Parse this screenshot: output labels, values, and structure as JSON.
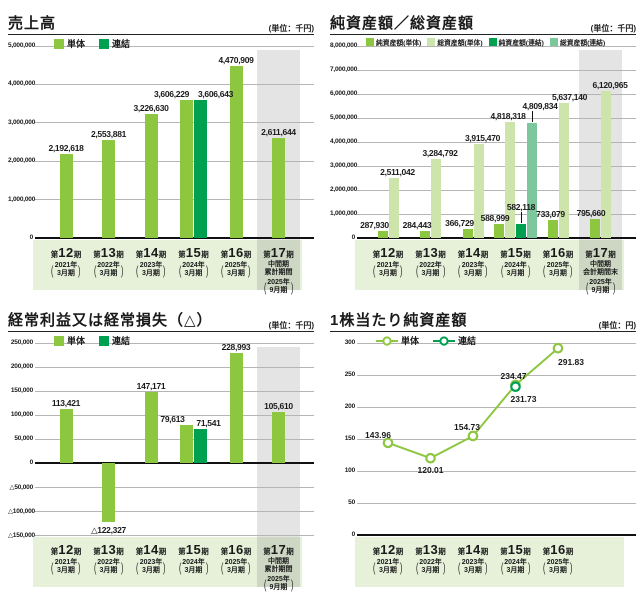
{
  "colors": {
    "unit": "#8dc63f",
    "consolidated": "#00a051",
    "total_unit": "#cde5ab",
    "total_consolidated": "#7cc79c",
    "band_bg": "#e7f1da",
    "grid": "#b5b5b5",
    "axis": "#111111",
    "text": "#1a1a1a"
  },
  "chart_data": [
    {
      "id": "sales",
      "title": "売上高",
      "unit": "(単位：千円)",
      "type": "bar",
      "ylim": [
        0,
        5000000
      ],
      "ytick": 1000000,
      "grid": true,
      "legend_position": "top",
      "gray_last": true,
      "period_prefix": "第",
      "period_suffix": "期",
      "legend": [
        {
          "label": "単体",
          "color": "unit"
        },
        {
          "label": "連結",
          "color": "consolidated"
        }
      ],
      "categories": [
        {
          "num": "12",
          "era": "2021年",
          "term": "3月期"
        },
        {
          "num": "13",
          "era": "2022年",
          "term": "3月期"
        },
        {
          "num": "14",
          "era": "2023年",
          "term": "3月期"
        },
        {
          "num": "15",
          "era": "2024年",
          "term": "3月期"
        },
        {
          "num": "16",
          "era": "2025年",
          "term": "3月期"
        },
        {
          "num": "17",
          "era": "2025年",
          "term": "9月期",
          "extra": [
            "中間期",
            "累計期間"
          ]
        }
      ],
      "points": [
        {
          "cat": 0,
          "series": "unit",
          "value": 2192618,
          "label": "2,192,618"
        },
        {
          "cat": 1,
          "series": "unit",
          "value": 2553881,
          "label": "2,553,881"
        },
        {
          "cat": 2,
          "series": "unit",
          "value": 3226630,
          "label": "3,226,630"
        },
        {
          "cat": 3,
          "series": "unit",
          "value": 3606229,
          "label": "3,606,229",
          "ldx": -15
        },
        {
          "cat": 3,
          "series": "consolidated",
          "value": 3606643,
          "label": "3,606,643",
          "ldx": 15
        },
        {
          "cat": 4,
          "series": "unit",
          "value": 4470909,
          "label": "4,470,909"
        },
        {
          "cat": 5,
          "series": "unit",
          "value": 2611644,
          "label": "2,611,644"
        }
      ]
    },
    {
      "id": "net-assets-total-assets",
      "title": "純資産額／総資産額",
      "unit": "(単位：千円)",
      "type": "bar",
      "ylim": [
        0,
        8000000
      ],
      "ytick": 1000000,
      "grid": true,
      "legend_position": "top",
      "gray_last": true,
      "period_prefix": "第",
      "period_suffix": "期",
      "legend": [
        {
          "label": "純資産額(単体)",
          "color": "unit"
        },
        {
          "label": "総資産額(単体)",
          "color": "total_unit"
        },
        {
          "label": "純資産額(連結)",
          "color": "consolidated"
        },
        {
          "label": "総資産額(連結)",
          "color": "total_consolidated"
        }
      ],
      "categories": [
        {
          "num": "12",
          "era": "2021年",
          "term": "3月期"
        },
        {
          "num": "13",
          "era": "2022年",
          "term": "3月期"
        },
        {
          "num": "14",
          "era": "2023年",
          "term": "3月期"
        },
        {
          "num": "15",
          "era": "2024年",
          "term": "3月期"
        },
        {
          "num": "16",
          "era": "2025年",
          "term": "3月期"
        },
        {
          "num": "17",
          "era": "2025年",
          "term": "9月期",
          "extra": [
            "中間期",
            "会計期間末"
          ]
        }
      ],
      "points": [
        {
          "cat": 0,
          "series": "unit",
          "value": 287930,
          "label": "287,930",
          "ldx": -8
        },
        {
          "cat": 0,
          "series": "total_unit",
          "value": 2511042,
          "label": "2,511,042",
          "ldx": 4
        },
        {
          "cat": 1,
          "series": "unit",
          "value": 284443,
          "label": "284,443",
          "ldx": -8
        },
        {
          "cat": 1,
          "series": "total_unit",
          "value": 3284792,
          "label": "3,284,792",
          "ldx": 4
        },
        {
          "cat": 2,
          "series": "unit",
          "value": 366729,
          "label": "366,729",
          "ldx": -8
        },
        {
          "cat": 2,
          "series": "total_unit",
          "value": 3915470,
          "label": "3,915,470",
          "ldx": 4
        },
        {
          "cat": 3,
          "series": "unit",
          "value": 588999,
          "label": "588,999",
          "ldx": -4
        },
        {
          "cat": 3,
          "series": "total_unit",
          "value": 4818318,
          "label": "4,818,318",
          "ldx": -2
        },
        {
          "cat": 3,
          "series": "consolidated",
          "value": 582118,
          "label": "582,118",
          "leader": true
        },
        {
          "cat": 3,
          "series": "total_consolidated",
          "value": 4809834,
          "label": "4,809,834",
          "ldx": 8,
          "leader": true
        },
        {
          "cat": 4,
          "series": "unit",
          "value": 733079,
          "label": "733,079",
          "ldx": -2
        },
        {
          "cat": 4,
          "series": "total_unit",
          "value": 5637140,
          "label": "5,637,140",
          "ldx": 6
        },
        {
          "cat": 5,
          "series": "unit",
          "value": 795660,
          "label": "795,660",
          "ldx": -4
        },
        {
          "cat": 5,
          "series": "total_unit",
          "value": 6120965,
          "label": "6,120,965",
          "ldx": 4
        }
      ]
    },
    {
      "id": "ordinary-income",
      "title": "経常利益又は経常損失（△）",
      "unit": "(単位：千円)",
      "type": "bar",
      "ylim": [
        -150000,
        250000
      ],
      "ytick": 50000,
      "grid": true,
      "legend_position": "top",
      "gray_last": true,
      "period_prefix": "第",
      "period_suffix": "期",
      "legend": [
        {
          "label": "単体",
          "color": "unit"
        },
        {
          "label": "連結",
          "color": "consolidated"
        }
      ],
      "categories": [
        {
          "num": "12",
          "era": "2021年",
          "term": "3月期"
        },
        {
          "num": "13",
          "era": "2022年",
          "term": "3月期"
        },
        {
          "num": "14",
          "era": "2023年",
          "term": "3月期"
        },
        {
          "num": "15",
          "era": "2024年",
          "term": "3月期"
        },
        {
          "num": "16",
          "era": "2025年",
          "term": "3月期"
        },
        {
          "num": "17",
          "era": "2025年",
          "term": "9月期",
          "extra": [
            "中間期",
            "累計期間"
          ]
        }
      ],
      "points": [
        {
          "cat": 0,
          "series": "unit",
          "value": 113421,
          "label": "113,421"
        },
        {
          "cat": 1,
          "series": "unit",
          "value": -122327,
          "label": "△122,327"
        },
        {
          "cat": 2,
          "series": "unit",
          "value": 147171,
          "label": "147,171"
        },
        {
          "cat": 3,
          "series": "unit",
          "value": 79613,
          "label": "79,613",
          "ldx": -14
        },
        {
          "cat": 3,
          "series": "consolidated",
          "value": 71541,
          "label": "71,541",
          "ldx": 8
        },
        {
          "cat": 4,
          "series": "unit",
          "value": 228993,
          "label": "228,993"
        },
        {
          "cat": 5,
          "series": "unit",
          "value": 105610,
          "label": "105,610"
        }
      ]
    },
    {
      "id": "net-assets-per-share",
      "title": "1株当たり純資産額",
      "unit": "(単位：円)",
      "type": "line",
      "ylim": [
        0,
        300
      ],
      "ytick": 50,
      "grid": true,
      "legend_position": "top",
      "gray_last": false,
      "period_prefix": "第",
      "period_suffix": "期",
      "legend": [
        {
          "label": "単体",
          "color": "unit"
        },
        {
          "label": "連結",
          "color": "consolidated"
        }
      ],
      "categories": [
        {
          "num": "12",
          "era": "2021年",
          "term": "3月期"
        },
        {
          "num": "13",
          "era": "2022年",
          "term": "3月期"
        },
        {
          "num": "14",
          "era": "2023年",
          "term": "3月期"
        },
        {
          "num": "15",
          "era": "2024年",
          "term": "3月期"
        },
        {
          "num": "16",
          "era": "2025年",
          "term": "3月期"
        }
      ],
      "series": [
        {
          "name": "単体",
          "color": "unit",
          "points": [
            {
              "cat": 0,
              "value": 143.96,
              "label": "143.96",
              "ldx": -10,
              "ldy": -13
            },
            {
              "cat": 1,
              "value": 120.01,
              "label": "120.01",
              "ldy": 7
            },
            {
              "cat": 2,
              "value": 154.73,
              "label": "154.73",
              "ldx": -6,
              "ldy": -14
            },
            {
              "cat": 3,
              "value": 234.47,
              "label": "234.47",
              "ldx": -2,
              "ldy": -14
            },
            {
              "cat": 4,
              "value": 291.83,
              "label": "291.83",
              "ldx": 13,
              "ldy": 9
            }
          ]
        },
        {
          "name": "連結",
          "color": "consolidated",
          "points": [
            {
              "cat": 3,
              "value": 231.73,
              "label": "231.73",
              "ldx": 8,
              "ldy": 7
            }
          ]
        }
      ]
    }
  ]
}
